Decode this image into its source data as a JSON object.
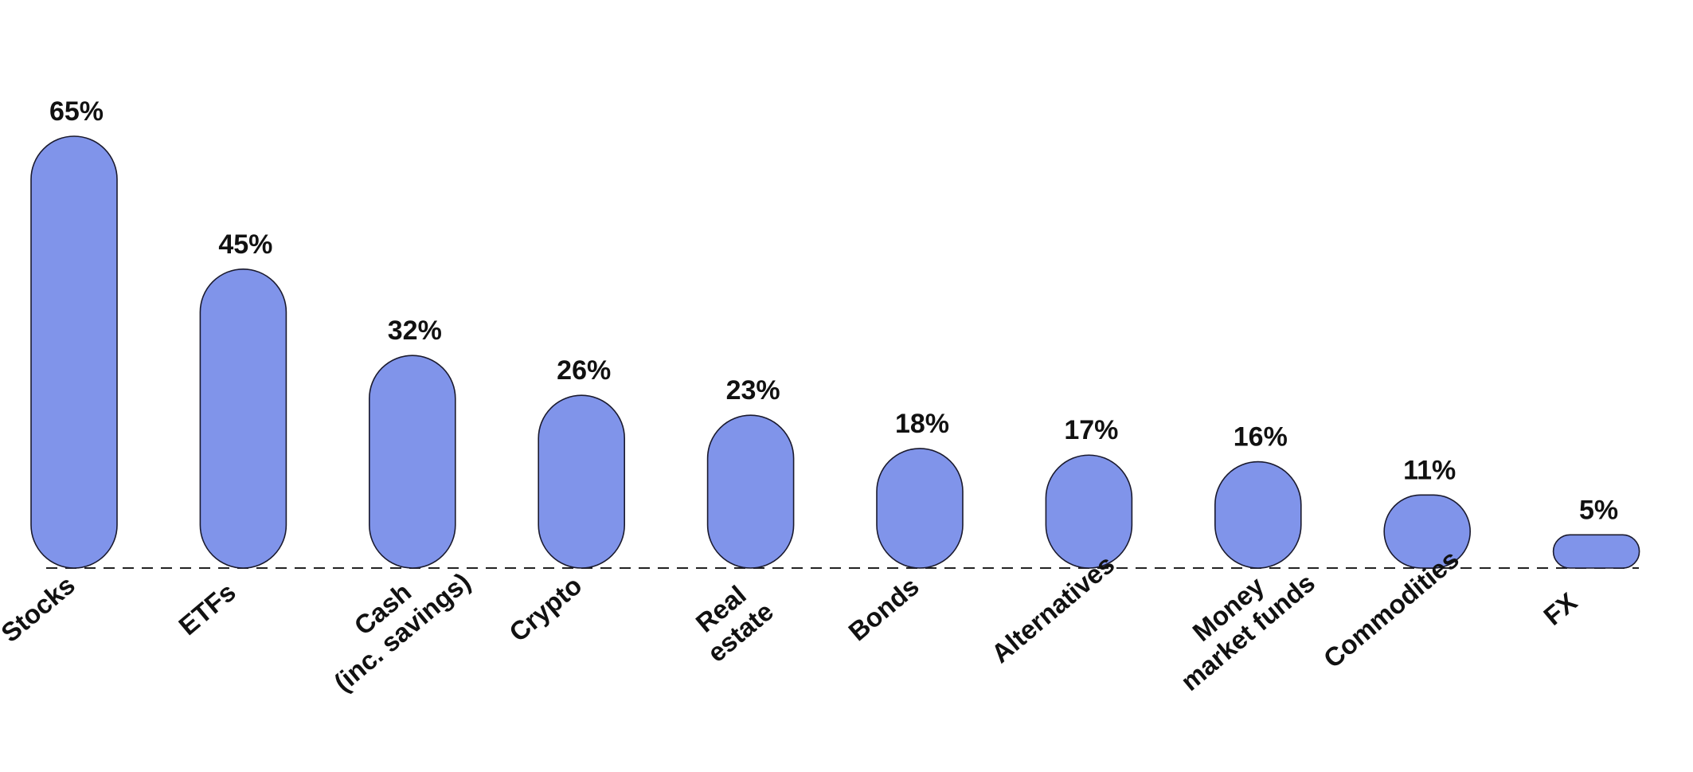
{
  "chart_data": {
    "type": "bar",
    "categories": [
      "Stocks",
      "ETFs",
      "Cash (inc. savings)",
      "Crypto",
      "Real estate",
      "Bonds",
      "Alternatives",
      "Money market funds",
      "Commodities",
      "FX"
    ],
    "category_label_lines": [
      [
        "Stocks"
      ],
      [
        "ETFs"
      ],
      [
        "Cash",
        "(inc. savings)"
      ],
      [
        "Crypto"
      ],
      [
        "Real",
        "estate"
      ],
      [
        "Bonds"
      ],
      [
        "Alternatives"
      ],
      [
        "Money",
        "market funds"
      ],
      [
        "Commodities"
      ],
      [
        "FX"
      ]
    ],
    "values": [
      65,
      45,
      32,
      26,
      23,
      18,
      17,
      16,
      11,
      5
    ],
    "data_labels": [
      "65%",
      "45%",
      "32%",
      "26%",
      "23%",
      "18%",
      "17%",
      "16%",
      "11%",
      "5%"
    ],
    "value_unit": "%",
    "title": "",
    "xlabel": "",
    "ylabel": "",
    "ylim": [
      0,
      65
    ],
    "grid": false,
    "legend": "none",
    "baseline_style": "dashed",
    "bar_shape": "rounded-pill",
    "bar_color": "#8094EA",
    "bar_outline_color": "#1A1A2E",
    "text_color": "#111111"
  }
}
